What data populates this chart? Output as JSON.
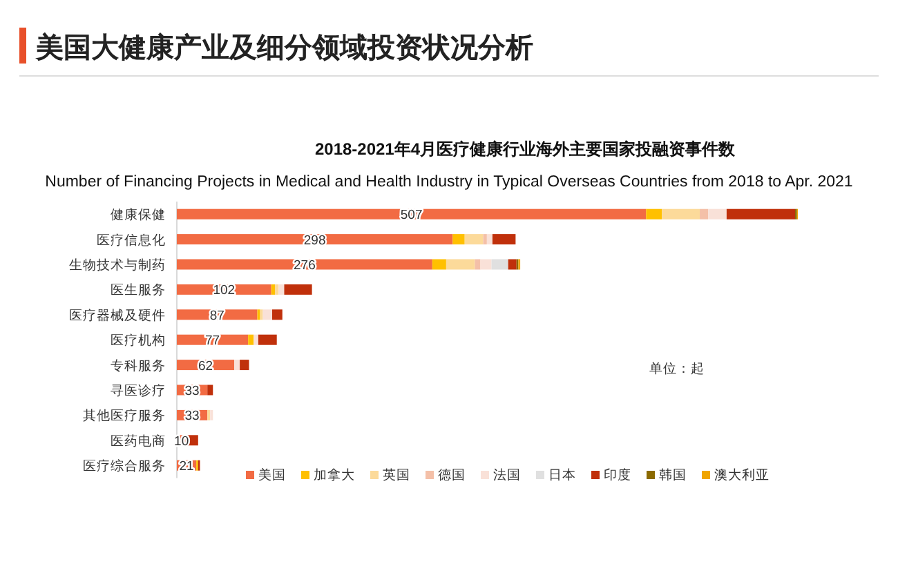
{
  "chart_data": {
    "type": "bar",
    "orientation": "horizontal",
    "stacked": true,
    "title": "2018-2021年4月医疗健康行业海外主要国家投融资事件数",
    "subtitle": "Number of Financing Projects in Medical and Health Industry in Typical Overseas Countries from  2018 to Apr. 2021",
    "annotations": [
      "美国大健康产业及细分领域投资状况分析",
      "单位：起"
    ],
    "categories": [
      "健康保健",
      "医疗信息化",
      "生物技术与制药",
      "医生服务",
      "医疗器械及硬件",
      "医疗机构",
      "专科服务",
      "寻医诊疗",
      "其他医疗服务",
      "医药电商",
      "医疗综合服务"
    ],
    "legend": "bottom right",
    "series": [
      {
        "name": "美国",
        "color": "#f26b43",
        "values": [
          507,
          298,
          276,
          102,
          87,
          77,
          62,
          33,
          33,
          10,
          21
        ],
        "value_labels": [
          "507",
          "298",
          "276",
          "102",
          "87",
          "77",
          "62",
          "33",
          "33",
          "10",
          "21"
        ]
      },
      {
        "name": "加拿大",
        "color": "#ffc000",
        "values": [
          17,
          13,
          15,
          4,
          3,
          6,
          0,
          0,
          0,
          0,
          2
        ]
      },
      {
        "name": "英国",
        "color": "#fcda9a",
        "values": [
          41,
          20,
          31,
          4,
          3,
          0,
          0,
          0,
          3,
          0,
          0
        ]
      },
      {
        "name": "德国",
        "color": "#f4c0a8",
        "values": [
          9,
          4,
          6,
          0,
          0,
          0,
          0,
          0,
          0,
          0,
          0
        ]
      },
      {
        "name": "法国",
        "color": "#f9e1d8",
        "values": [
          20,
          6,
          12,
          6,
          10,
          5,
          6,
          null,
          3,
          null,
          0
        ]
      },
      {
        "name": "日本",
        "color": "#e0e0e0",
        "values": [
          0,
          0,
          18,
          0,
          0,
          0,
          0,
          0,
          0,
          0,
          0
        ]
      },
      {
        "name": "印度",
        "color": "#c0300b",
        "values": [
          74,
          25,
          9,
          30,
          11,
          20,
          10,
          6,
          0,
          13,
          2
        ]
      },
      {
        "name": "韩国",
        "color": "#8b6a00",
        "values": [
          2,
          0,
          2,
          0,
          0,
          0,
          0,
          0,
          0,
          0,
          0
        ]
      },
      {
        "name": "澳大利亚",
        "color": "#f0a500",
        "values": [
          1,
          0,
          2,
          0,
          0,
          0,
          0,
          0,
          0,
          0,
          0
        ]
      }
    ]
  }
}
